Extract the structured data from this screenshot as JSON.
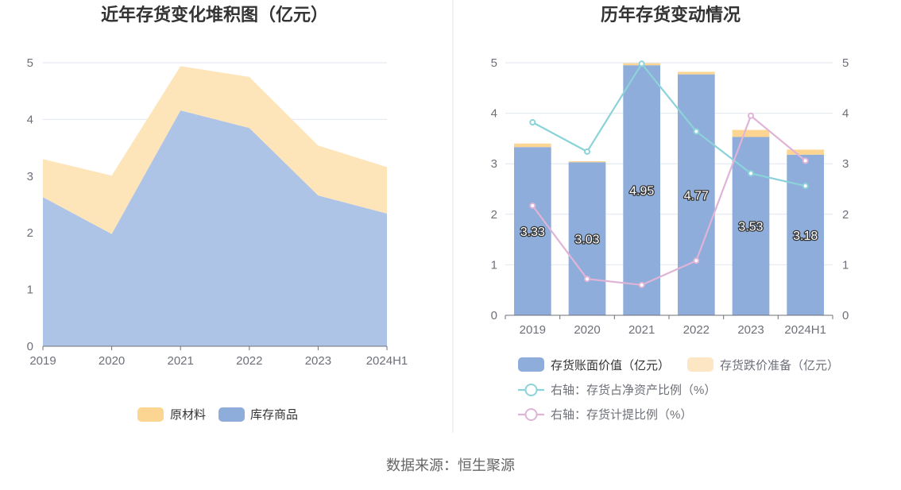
{
  "source": "数据来源：恒生聚源",
  "chart_data": [
    {
      "type": "area",
      "stacked": true,
      "title": "近年存货变化堆积图（亿元）",
      "categories": [
        "2019",
        "2020",
        "2021",
        "2022",
        "2023",
        "2024H1"
      ],
      "ylim": [
        0,
        5
      ],
      "yticks": [
        "0",
        "1",
        "2",
        "3",
        "4",
        "5"
      ],
      "grid": true,
      "legend_position": "bottom",
      "series": [
        {
          "name": "库存商品",
          "values": [
            2.63,
            1.98,
            4.16,
            3.85,
            2.66,
            2.34
          ],
          "color": "#aec4e6",
          "legend_color": "#8eaddb"
        },
        {
          "name": "原材料",
          "values": [
            0.67,
            1.03,
            0.78,
            0.9,
            0.88,
            0.82
          ],
          "color": "#fde5b9",
          "legend_color": "#fcd592"
        }
      ]
    },
    {
      "type": "bar",
      "stacked": true,
      "title": "历年存货变动情况",
      "categories": [
        "2019",
        "2020",
        "2021",
        "2022",
        "2023",
        "2024H1"
      ],
      "ylim": [
        0,
        5
      ],
      "y2lim": [
        0,
        5
      ],
      "yticks": [
        "0",
        "1",
        "2",
        "3",
        "4",
        "5"
      ],
      "y2ticks": [
        "0",
        "1",
        "2",
        "3",
        "4",
        "5"
      ],
      "grid": true,
      "legend_position": "bottom",
      "series": [
        {
          "name": "存货账面价值（亿元）",
          "kind": "bar",
          "values": [
            3.33,
            3.03,
            4.95,
            4.77,
            3.53,
            3.18
          ],
          "labels": [
            "3.33",
            "3.03",
            "4.95",
            "4.77",
            "3.53",
            "3.18"
          ],
          "color": "#8eaddb"
        },
        {
          "name": "存货跌价准备（亿元）",
          "kind": "bar",
          "values": [
            0.07,
            0.02,
            0.04,
            0.05,
            0.14,
            0.1
          ],
          "color": "#fcd592",
          "legend_color": "#fde6c4"
        },
        {
          "name": "右轴：存货占净资产比例（%）",
          "kind": "line",
          "axis": "right",
          "values": [
            3.82,
            3.24,
            4.98,
            3.64,
            2.81,
            2.56
          ],
          "color": "#8bd3d9"
        },
        {
          "name": "右轴：存货计提比例（%）",
          "kind": "line",
          "axis": "right",
          "values": [
            2.17,
            0.72,
            0.6,
            1.08,
            3.95,
            3.06
          ],
          "color": "#e0b4d6"
        }
      ]
    }
  ]
}
